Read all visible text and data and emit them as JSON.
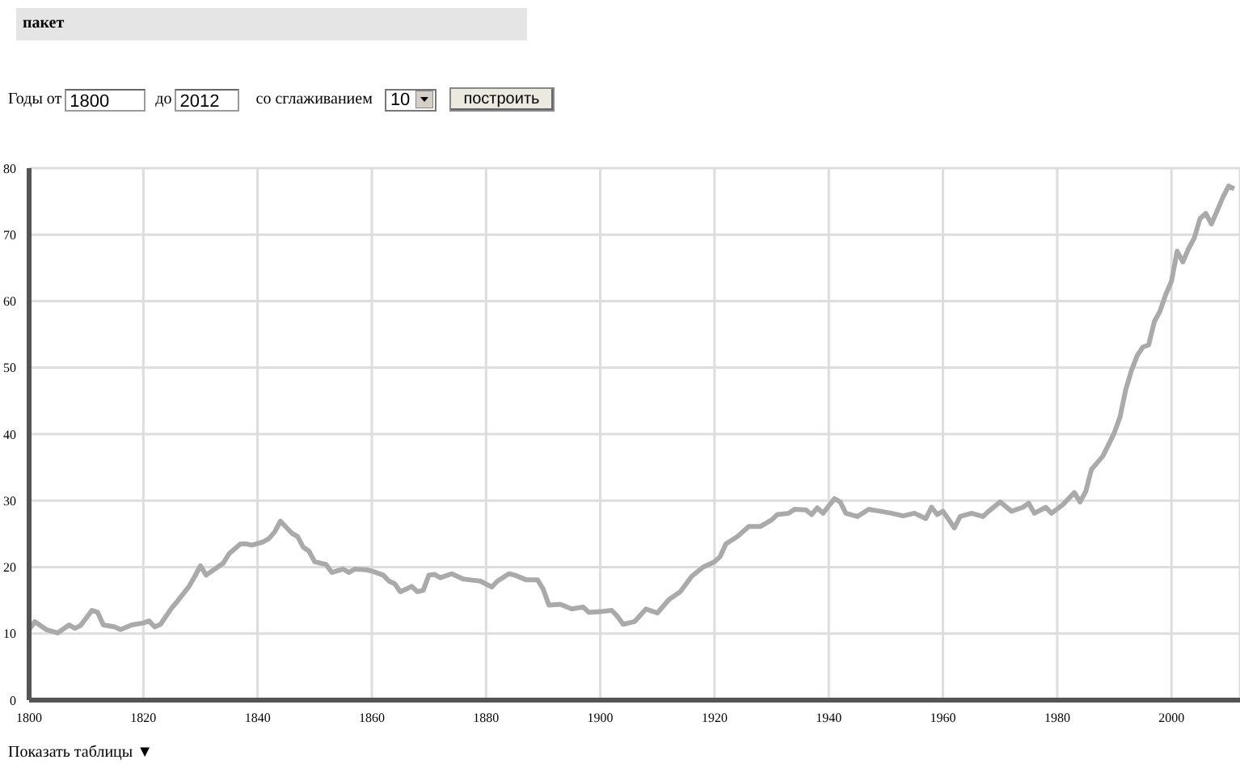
{
  "chart_data": {
    "type": "line",
    "title": "пакет",
    "annotations": [
      "Годы от",
      "1800",
      "до",
      "2012",
      "со сглаживанием",
      "10",
      "построить",
      "Показать таблицы ▼"
    ],
    "x": [
      1800,
      1801,
      1803,
      1805,
      1807,
      1808,
      1809,
      1811,
      1812,
      1813,
      1815,
      1816,
      1818,
      1820,
      1821,
      1822,
      1823,
      1825,
      1826,
      1828,
      1829,
      1830,
      1831,
      1833,
      1834,
      1835,
      1837,
      1838,
      1839,
      1841,
      1842,
      1843,
      1844,
      1846,
      1847,
      1848,
      1849,
      1850,
      1852,
      1853,
      1855,
      1856,
      1857,
      1859,
      1860,
      1862,
      1863,
      1864,
      1865,
      1867,
      1868,
      1869,
      1870,
      1871,
      1872,
      1874,
      1876,
      1877,
      1879,
      1881,
      1882,
      1884,
      1885,
      1887,
      1889,
      1890,
      1891,
      1893,
      1895,
      1897,
      1898,
      1900,
      1902,
      1903,
      1904,
      1906,
      1908,
      1910,
      1912,
      1914,
      1916,
      1918,
      1920,
      1921,
      1922,
      1924,
      1926,
      1928,
      1930,
      1931,
      1933,
      1934,
      1936,
      1937,
      1938,
      1939,
      1941,
      1942,
      1943,
      1945,
      1947,
      1949,
      1951,
      1953,
      1955,
      1957,
      1958,
      1959,
      1960,
      1962,
      1963,
      1965,
      1967,
      1968,
      1970,
      1972,
      1974,
      1975,
      1976,
      1978,
      1979,
      1981,
      1983,
      1984,
      1985,
      1986,
      1988,
      1990,
      1991,
      1992,
      1993,
      1994,
      1995,
      1996,
      1997,
      1998,
      1999,
      2000,
      2001,
      2002,
      2003,
      2004,
      2005,
      2006,
      2007,
      2008,
      2009,
      2010,
      2011
    ],
    "series": [
      {
        "color": "#aaaaaa",
        "values": [
          10.6,
          11.8,
          10.6,
          10.1,
          11.3,
          10.8,
          11.2,
          13.5,
          13.2,
          11.3,
          11.0,
          10.6,
          11.3,
          11.6,
          11.9,
          11.0,
          11.4,
          13.9,
          14.9,
          17.1,
          18.6,
          20.2,
          18.8,
          20.0,
          20.6,
          22.0,
          23.5,
          23.5,
          23.3,
          23.8,
          24.3,
          25.3,
          26.9,
          25.1,
          24.6,
          23.0,
          22.4,
          20.8,
          20.4,
          19.2,
          19.7,
          19.2,
          19.7,
          19.6,
          19.4,
          18.8,
          17.9,
          17.5,
          16.3,
          17.1,
          16.3,
          16.5,
          18.8,
          18.9,
          18.4,
          19.0,
          18.2,
          18.1,
          17.9,
          17.0,
          17.9,
          19.0,
          18.8,
          18.1,
          18.1,
          16.7,
          14.3,
          14.4,
          13.7,
          14.0,
          13.2,
          13.3,
          13.5,
          12.6,
          11.4,
          11.8,
          13.7,
          13.1,
          15.1,
          16.3,
          18.6,
          20.0,
          20.8,
          21.6,
          23.5,
          24.6,
          26.1,
          26.1,
          27.1,
          27.9,
          28.1,
          28.7,
          28.6,
          27.9,
          28.9,
          28.1,
          30.3,
          29.8,
          28.1,
          27.6,
          28.7,
          28.4,
          28.1,
          27.7,
          28.1,
          27.3,
          29.0,
          27.9,
          28.4,
          25.9,
          27.6,
          28.1,
          27.6,
          28.4,
          29.8,
          28.4,
          29.0,
          29.6,
          28.1,
          29.0,
          28.1,
          29.4,
          31.2,
          29.8,
          31.4,
          34.7,
          36.7,
          40.2,
          42.6,
          46.7,
          49.6,
          51.8,
          53.1,
          53.4,
          56.9,
          58.5,
          61.0,
          63.0,
          67.5,
          65.9,
          67.9,
          69.5,
          72.4,
          73.2,
          71.6,
          73.6,
          75.6,
          77.3,
          76.9
        ]
      }
    ],
    "xlim": [
      1800,
      2012
    ],
    "xticks": [
      1800,
      1820,
      1840,
      1860,
      1880,
      1900,
      1920,
      1940,
      1960,
      1980,
      2000
    ],
    "ylim": [
      0,
      80
    ],
    "yticks": [
      0,
      10,
      20,
      30,
      40,
      50,
      60,
      70,
      80
    ],
    "grid": true,
    "marker": "none",
    "line_style": "solid"
  }
}
